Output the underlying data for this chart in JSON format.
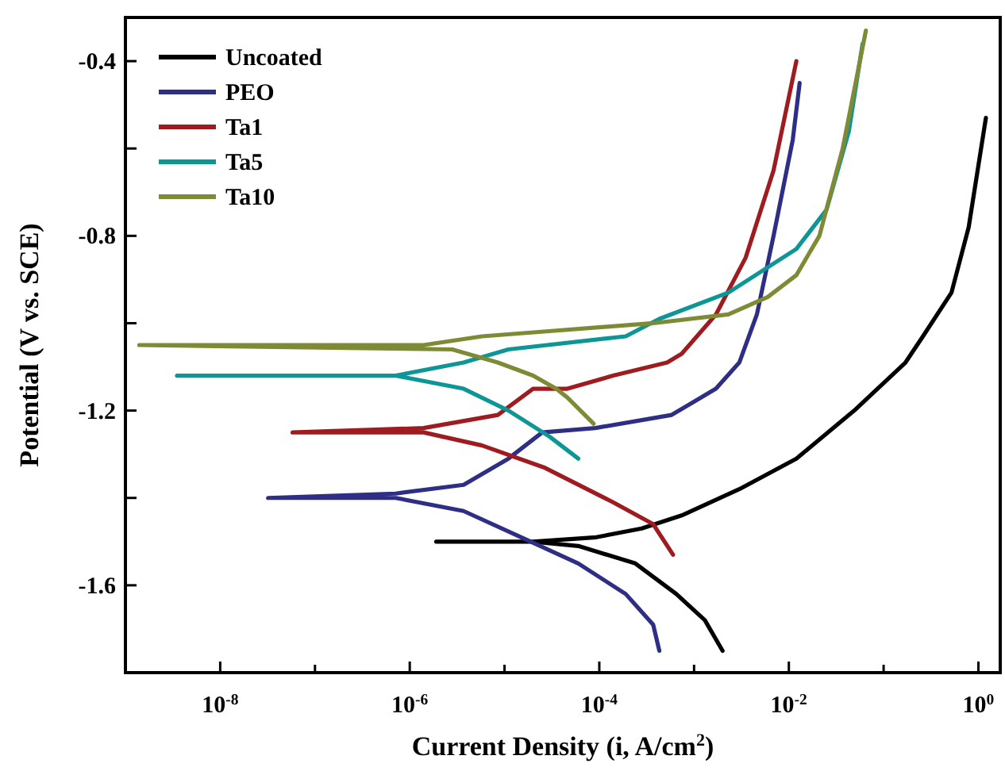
{
  "chart_data": {
    "type": "line",
    "xlabel": "Current Density (i, A/cm$^{2}$)",
    "ylabel": "Potential (V vs. SCE)",
    "log": "x",
    "legend": "top left",
    "xlim": [
      1e-09,
      1.7
    ],
    "ylim": [
      -1.8,
      -0.3
    ],
    "xticks": [
      {
        "value": 1e-09,
        "label": null
      },
      {
        "value": 1e-08,
        "label": "10$^{-8}$"
      },
      {
        "value": 1e-07,
        "label": null
      },
      {
        "value": 1e-06,
        "label": "10$^{-6}$"
      },
      {
        "value": 1e-05,
        "label": null
      },
      {
        "value": 0.0001,
        "label": "10$^{-4}$"
      },
      {
        "value": 0.001,
        "label": null
      },
      {
        "value": 0.01,
        "label": "10$^{-2}$"
      },
      {
        "value": 0.1,
        "label": null
      },
      {
        "value": 1,
        "label": "10$^{0}$"
      }
    ],
    "yticks": [
      -1.6,
      {
        "value": -1.4,
        "label": null
      },
      -1.2,
      {
        "value": -1.0,
        "label": null
      },
      -0.8,
      {
        "value": -0.6,
        "label": null
      },
      -0.4
    ],
    "series": [
      {
        "name": "Uncoated",
        "color": "#000000",
        "x": [
          0.002,
          0.0013,
          0.00065,
          0.00024,
          6e-05,
          2e-05,
          1.9e-06,
          2e-05,
          9.3e-05,
          0.00028,
          0.00074,
          0.003,
          0.012,
          0.049,
          0.17,
          0.26,
          0.52,
          0.79,
          1.2
        ],
        "values": [
          -1.75,
          -1.68,
          -1.62,
          -1.55,
          -1.51,
          -1.5,
          -1.5,
          -1.5,
          -1.49,
          -1.47,
          -1.44,
          -1.38,
          -1.31,
          -1.2,
          -1.09,
          -1.03,
          -0.93,
          -0.78,
          -0.53
        ]
      },
      {
        "name": "PEO",
        "color": "#2e2e84",
        "x": [
          0.00043,
          0.00037,
          0.00019,
          6e-05,
          1.5e-05,
          3.7e-06,
          7.1e-07,
          3.2e-08,
          7.1e-07,
          3.7e-06,
          1.1e-05,
          2.5e-05,
          9.1e-05,
          0.00058,
          0.0017,
          0.003,
          0.0046,
          0.0069,
          0.011,
          0.013
        ],
        "values": [
          -1.75,
          -1.69,
          -1.62,
          -1.55,
          -1.49,
          -1.43,
          -1.4,
          -1.4,
          -1.39,
          -1.37,
          -1.31,
          -1.25,
          -1.24,
          -1.21,
          -1.15,
          -1.09,
          -0.98,
          -0.8,
          -0.58,
          -0.45
        ]
      },
      {
        "name": "Ta1",
        "color": "#9e1b20",
        "x": [
          0.0006,
          0.00037,
          0.00014,
          2.6e-05,
          5.8e-06,
          1.4e-06,
          5.8e-08,
          1.4e-06,
          8.5e-06,
          2e-05,
          4.6e-05,
          0.00014,
          0.00052,
          0.00074,
          0.0017,
          0.0035,
          0.0069,
          0.012
        ],
        "values": [
          -1.53,
          -1.46,
          -1.41,
          -1.33,
          -1.28,
          -1.25,
          -1.25,
          -1.24,
          -1.21,
          -1.15,
          -1.15,
          -1.12,
          -1.09,
          -1.07,
          -0.98,
          -0.85,
          -0.65,
          -0.4
        ]
      },
      {
        "name": "Ta5",
        "color": "#0e9696",
        "x": [
          6e-05,
          3e-05,
          1.1e-05,
          3.7e-06,
          7.1e-07,
          3.5e-09,
          7.1e-07,
          3.7e-06,
          1.1e-05,
          0.00019,
          0.00043,
          0.0023,
          0.012,
          0.025,
          0.043,
          0.06
        ],
        "values": [
          -1.31,
          -1.26,
          -1.2,
          -1.15,
          -1.12,
          -1.12,
          -1.12,
          -1.09,
          -1.06,
          -1.03,
          -0.99,
          -0.93,
          -0.83,
          -0.74,
          -0.56,
          -0.36
        ]
      },
      {
        "name": "Ta10",
        "color": "#7f8a35",
        "x": [
          8.7e-05,
          4.6e-05,
          3.5e-05,
          2e-05,
          8.5e-06,
          2.8e-06,
          1.4e-09,
          1.4e-06,
          5.8e-06,
          2.3e-05,
          0.00037,
          0.0023,
          0.006,
          0.012,
          0.021,
          0.037,
          0.065
        ],
        "values": [
          -1.23,
          -1.17,
          -1.15,
          -1.12,
          -1.09,
          -1.06,
          -1.05,
          -1.05,
          -1.03,
          -1.02,
          -1.0,
          -0.98,
          -0.94,
          -0.89,
          -0.8,
          -0.6,
          -0.33
        ]
      }
    ]
  }
}
